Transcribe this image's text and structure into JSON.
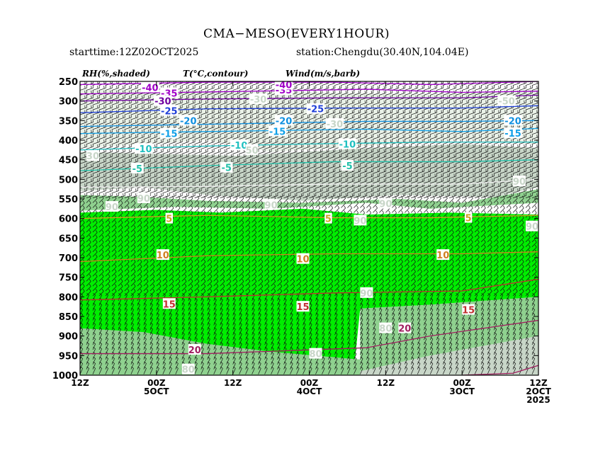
{
  "header": {
    "title": "CMA−MESO(EVERY1HOUR)",
    "starttime": "starttime:12Z02OCT2025",
    "station": "station:Chengdu(30.40N,104.04E)"
  },
  "chart_data": {
    "type": "area",
    "title": "CMA−MESO(EVERY1HOUR)",
    "panel_labels": [
      "RH(%,shaded)",
      "T(°C,contour)",
      "Wind(m/s,barb)"
    ],
    "y_axis": {
      "unit": "hPa",
      "ticks": [
        250,
        300,
        350,
        400,
        450,
        500,
        550,
        600,
        650,
        700,
        750,
        800,
        850,
        900,
        950,
        1000
      ],
      "range": [
        250,
        1000
      ],
      "inverted": false
    },
    "x_axis": {
      "range_hours": [
        0,
        72
      ],
      "direction": "time decreases left to right",
      "ticks": [
        {
          "h": 0,
          "l1": "12Z",
          "l2": "",
          "l3": ""
        },
        {
          "h": 12,
          "l1": "00Z",
          "l2": "5OCT",
          "l3": ""
        },
        {
          "h": 24,
          "l1": "12Z",
          "l2": "",
          "l3": ""
        },
        {
          "h": 36,
          "l1": "00Z",
          "l2": "4OCT",
          "l3": ""
        },
        {
          "h": 48,
          "l1": "12Z",
          "l2": "",
          "l3": ""
        },
        {
          "h": 60,
          "l1": "00Z",
          "l2": "3OCT",
          "l3": ""
        },
        {
          "h": 72,
          "l1": "12Z",
          "l2": "2OCT",
          "l3": "2025"
        }
      ]
    },
    "rh_levels": [
      {
        "min": 30,
        "color": "#eaf2e8"
      },
      {
        "min": 50,
        "color": "#c8d6c8"
      },
      {
        "min": 80,
        "color": "#8fd18f"
      },
      {
        "min": 90,
        "color": "#00ee00"
      }
    ],
    "rh_bands": [
      {
        "level": 30,
        "top": [
          [
            0,
            270
          ],
          [
            30,
            275
          ],
          [
            55,
            285
          ],
          [
            72,
            270
          ]
        ],
        "bottom": [
          [
            0,
            420
          ],
          [
            20,
            400
          ],
          [
            30,
            430
          ],
          [
            45,
            415
          ],
          [
            60,
            400
          ],
          [
            72,
            410
          ]
        ]
      },
      {
        "level": 50,
        "top": [
          [
            0,
            430
          ],
          [
            25,
            440
          ],
          [
            45,
            420
          ],
          [
            60,
            410
          ],
          [
            72,
            420
          ]
        ],
        "bottom": [
          [
            0,
            530
          ],
          [
            10,
            520
          ],
          [
            20,
            540
          ],
          [
            35,
            555
          ],
          [
            50,
            540
          ],
          [
            65,
            545
          ],
          [
            72,
            520
          ]
        ]
      },
      {
        "level": 80,
        "top": [
          [
            0,
            540
          ],
          [
            10,
            545
          ],
          [
            20,
            555
          ],
          [
            35,
            560
          ],
          [
            50,
            550
          ],
          [
            60,
            560
          ],
          [
            72,
            525
          ]
        ],
        "bottom": [
          [
            0,
            580
          ],
          [
            15,
            570
          ],
          [
            30,
            575
          ],
          [
            45,
            560
          ],
          [
            55,
            575
          ],
          [
            72,
            560
          ]
        ]
      },
      {
        "level": 90,
        "top": [
          [
            0,
            585
          ],
          [
            12,
            578
          ],
          [
            22,
            585
          ],
          [
            35,
            575
          ],
          [
            45,
            590
          ],
          [
            58,
            585
          ],
          [
            72,
            590
          ]
        ],
        "bottom": [
          [
            0,
            1000
          ],
          [
            30,
            1000
          ],
          [
            43,
            990
          ],
          [
            44,
            830
          ],
          [
            55,
            820
          ],
          [
            72,
            800
          ]
        ]
      },
      {
        "level": 80,
        "top": [
          [
            44,
            830
          ],
          [
            55,
            820
          ],
          [
            72,
            800
          ]
        ],
        "bottom": [
          [
            44,
            990
          ],
          [
            55,
            950
          ],
          [
            72,
            900
          ]
        ]
      },
      {
        "level": 50,
        "top": [
          [
            44,
            990
          ],
          [
            55,
            950
          ],
          [
            72,
            900
          ]
        ],
        "bottom": [
          [
            44,
            1000
          ],
          [
            72,
            1000
          ]
        ]
      },
      {
        "level": 80,
        "top": [
          [
            0,
            880
          ],
          [
            10,
            890
          ],
          [
            20,
            920
          ],
          [
            30,
            940
          ],
          [
            44,
            960
          ]
        ],
        "bottom": [
          [
            0,
            1000
          ],
          [
            44,
            1000
          ]
        ]
      }
    ],
    "temperature_contours": [
      {
        "value": -40,
        "color": "#a000c8",
        "points": [
          [
            0,
            258
          ],
          [
            20,
            252
          ],
          [
            40,
            252
          ],
          [
            55,
            258
          ],
          [
            72,
            250
          ]
        ]
      },
      {
        "value": -35,
        "color": "#a000c8",
        "points": [
          [
            0,
            282
          ],
          [
            20,
            277
          ],
          [
            45,
            270
          ],
          [
            60,
            278
          ],
          [
            72,
            275
          ]
        ]
      },
      {
        "value": -30,
        "color": "#7000a0",
        "points": [
          [
            0,
            300
          ],
          [
            20,
            295
          ],
          [
            40,
            292
          ],
          [
            60,
            292
          ],
          [
            72,
            285
          ]
        ]
      },
      {
        "value": -25,
        "color": "#2040d8",
        "points": [
          [
            0,
            330
          ],
          [
            20,
            320
          ],
          [
            40,
            318
          ],
          [
            60,
            318
          ],
          [
            72,
            312
          ]
        ]
      },
      {
        "value": -20,
        "color": "#1090e0",
        "points": [
          [
            0,
            365
          ],
          [
            25,
            358
          ],
          [
            45,
            352
          ],
          [
            60,
            352
          ],
          [
            72,
            350
          ]
        ]
      },
      {
        "value": -15,
        "color": "#10a0e8",
        "points": [
          [
            0,
            383
          ],
          [
            20,
            378
          ],
          [
            45,
            372
          ],
          [
            60,
            378
          ],
          [
            72,
            370
          ]
        ]
      },
      {
        "value": -10,
        "color": "#20c0c0",
        "points": [
          [
            0,
            425
          ],
          [
            20,
            415
          ],
          [
            35,
            410
          ],
          [
            55,
            405
          ],
          [
            72,
            405
          ]
        ]
      },
      {
        "value": -5,
        "color": "#20c0a8",
        "points": [
          [
            0,
            478
          ],
          [
            20,
            465
          ],
          [
            40,
            455
          ],
          [
            60,
            455
          ],
          [
            72,
            450
          ]
        ]
      },
      {
        "value": 0,
        "color": "#f0f0f0",
        "points": [
          [
            0,
            520
          ],
          [
            20,
            518
          ],
          [
            40,
            512
          ],
          [
            60,
            512
          ],
          [
            72,
            500
          ]
        ]
      },
      {
        "value": 5,
        "color": "#d0a020",
        "points": [
          [
            0,
            600
          ],
          [
            20,
            592
          ],
          [
            40,
            598
          ],
          [
            55,
            598
          ],
          [
            72,
            592
          ]
        ]
      },
      {
        "value": 10,
        "color": "#d08020",
        "points": [
          [
            0,
            710
          ],
          [
            20,
            695
          ],
          [
            40,
            690
          ],
          [
            60,
            690
          ],
          [
            72,
            685
          ]
        ]
      },
      {
        "value": 15,
        "color": "#c03030",
        "points": [
          [
            0,
            808
          ],
          [
            20,
            800
          ],
          [
            40,
            790
          ],
          [
            60,
            785
          ],
          [
            72,
            755
          ]
        ]
      },
      {
        "value": 20,
        "color": "#a02060",
        "points": [
          [
            0,
            945
          ],
          [
            20,
            945
          ],
          [
            45,
            930
          ],
          [
            55,
            900
          ],
          [
            72,
            860
          ]
        ]
      },
      {
        "value": 25,
        "color": "#a02060",
        "points": [
          [
            60,
            1000
          ],
          [
            68,
            995
          ],
          [
            72,
            975
          ]
        ]
      }
    ],
    "contour_labels": [
      {
        "text": "-40",
        "h": 11,
        "p": 265,
        "color": "#a000c8"
      },
      {
        "text": "-35",
        "h": 14,
        "p": 280,
        "color": "#a000c8"
      },
      {
        "text": "-30",
        "h": 13,
        "p": 300,
        "color": "#7000a0"
      },
      {
        "text": "-25",
        "h": 14,
        "p": 325,
        "color": "#2040d8"
      },
      {
        "text": "-20",
        "h": 17,
        "p": 350,
        "color": "#1090e0"
      },
      {
        "text": "-15",
        "h": 14,
        "p": 383,
        "color": "#10a0e8"
      },
      {
        "text": "-10",
        "h": 10,
        "p": 422,
        "color": "#20c0c0"
      },
      {
        "text": "-5",
        "h": 9,
        "p": 472,
        "color": "#20c0a8"
      },
      {
        "text": "-35",
        "h": 32,
        "p": 272,
        "color": "#a000c8"
      },
      {
        "text": "-40",
        "h": 32,
        "p": 258,
        "color": "#a000c8"
      },
      {
        "text": "-30",
        "h": 28,
        "p": 295,
        "color": "#c8d6c8"
      },
      {
        "text": "-20",
        "h": 32,
        "p": 350,
        "color": "#1090e0"
      },
      {
        "text": "-15",
        "h": 31,
        "p": 377,
        "color": "#10a0e8"
      },
      {
        "text": "-10",
        "h": 25,
        "p": 413,
        "color": "#20c0c0"
      },
      {
        "text": "-5",
        "h": 23,
        "p": 470,
        "color": "#20c0a8"
      },
      {
        "text": "-25",
        "h": 37,
        "p": 320,
        "color": "#2040d8"
      },
      {
        "text": "-30",
        "h": 40,
        "p": 358,
        "color": "#c8d6c8"
      },
      {
        "text": "-10",
        "h": 42,
        "p": 410,
        "color": "#20c0c0"
      },
      {
        "text": "-5",
        "h": 42,
        "p": 465,
        "color": "#20c0a8"
      },
      {
        "text": "-50",
        "h": 67,
        "p": 300,
        "color": "#c8d6c8"
      },
      {
        "text": "-20",
        "h": 68,
        "p": 350,
        "color": "#1090e0"
      },
      {
        "text": "-15",
        "h": 68,
        "p": 382,
        "color": "#10a0e8"
      },
      {
        "text": "30",
        "h": 2,
        "p": 440,
        "color": "#c8d6c8"
      },
      {
        "text": "50",
        "h": 27,
        "p": 425,
        "color": "#c8d6c8"
      },
      {
        "text": "90",
        "h": 10,
        "p": 548,
        "color": "#c8d6c8"
      },
      {
        "text": "90",
        "h": 5,
        "p": 570,
        "color": "#c8d6c8"
      },
      {
        "text": "90",
        "h": 30,
        "p": 565,
        "color": "#c8d6c8"
      },
      {
        "text": "90",
        "h": 44,
        "p": 605,
        "color": "#c8d6c8"
      },
      {
        "text": "90",
        "h": 48,
        "p": 562,
        "color": "#c8d6c8"
      },
      {
        "text": "90",
        "h": 69,
        "p": 505,
        "color": "#c8d6c8"
      },
      {
        "text": "90",
        "h": 71,
        "p": 620,
        "color": "#c8d6c8"
      },
      {
        "text": "90",
        "h": 45,
        "p": 790,
        "color": "#c8d6c8"
      },
      {
        "text": "80",
        "h": 48,
        "p": 880,
        "color": "#c8d6c8"
      },
      {
        "text": "80",
        "h": 37,
        "p": 945,
        "color": "#c8d6c8"
      },
      {
        "text": "80",
        "h": 17,
        "p": 985,
        "color": "#c8d6c8"
      },
      {
        "text": "5",
        "h": 14,
        "p": 600,
        "color": "#d0a020"
      },
      {
        "text": "5",
        "h": 39,
        "p": 600,
        "color": "#d0a020"
      },
      {
        "text": "5",
        "h": 61,
        "p": 598,
        "color": "#d0a020"
      },
      {
        "text": "10",
        "h": 13,
        "p": 693,
        "color": "#d08020"
      },
      {
        "text": "10",
        "h": 35,
        "p": 703,
        "color": "#d08020"
      },
      {
        "text": "10",
        "h": 57,
        "p": 693,
        "color": "#d08020"
      },
      {
        "text": "15",
        "h": 14,
        "p": 818,
        "color": "#c03030"
      },
      {
        "text": "15",
        "h": 35,
        "p": 825,
        "color": "#c03030"
      },
      {
        "text": "15",
        "h": 61,
        "p": 833,
        "color": "#c03030"
      },
      {
        "text": "20",
        "h": 18,
        "p": 935,
        "color": "#a02060"
      },
      {
        "text": "20",
        "h": 51,
        "p": 880,
        "color": "#a02060"
      }
    ],
    "wind_barbs": "dense barbs every hour at every level; mostly westerly/south-westerly, strongest aloft"
  }
}
